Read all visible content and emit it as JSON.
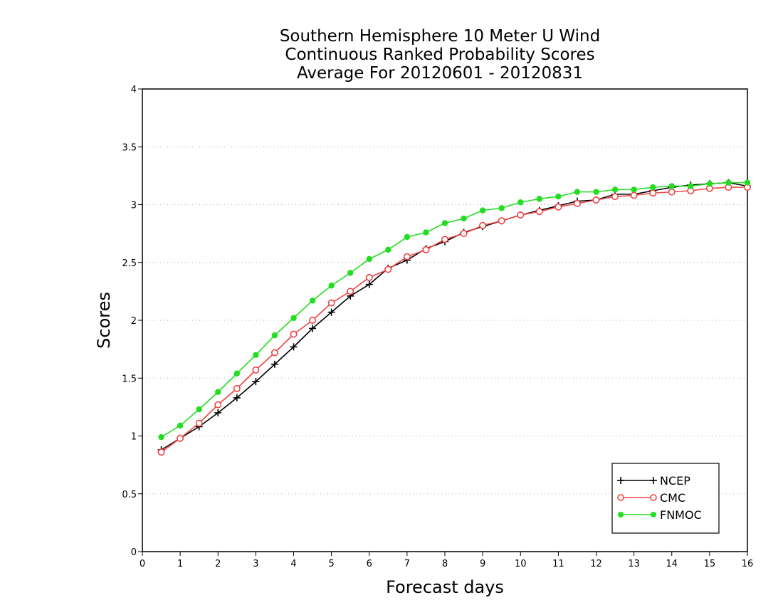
{
  "chart_data": {
    "type": "line",
    "title": [
      "Southern Hemisphere 10 Meter U Wind",
      "Continuous Ranked Probability Scores",
      "Average For 20120601 - 20120831"
    ],
    "xlabel": "Forecast days",
    "ylabel": "Scores",
    "xlim": [
      0,
      16
    ],
    "ylim": [
      0,
      4
    ],
    "x_ticks": [
      "0",
      "1",
      "2",
      "3",
      "4",
      "5",
      "6",
      "7",
      "8",
      "9",
      "10",
      "11",
      "12",
      "13",
      "14",
      "15",
      "16"
    ],
    "y_ticks": [
      "0",
      "0.5",
      "1",
      "1.5",
      "2",
      "2.5",
      "3",
      "3.5",
      "4"
    ],
    "grid": "horizontal dotted",
    "legend_position": "bottom-right",
    "x": [
      0.5,
      1,
      1.5,
      2,
      2.5,
      3,
      3.5,
      4,
      4.5,
      5,
      5.5,
      6,
      6.5,
      7,
      7.5,
      8,
      8.5,
      9,
      9.5,
      10,
      10.5,
      11,
      11.5,
      12,
      12.5,
      13,
      13.5,
      14,
      14.5,
      15,
      15.5,
      16
    ],
    "series": [
      {
        "name": "NCEP",
        "color": "#000000",
        "marker": "plus",
        "values": [
          0.88,
          0.98,
          1.08,
          1.2,
          1.33,
          1.47,
          1.62,
          1.77,
          1.93,
          2.07,
          2.21,
          2.31,
          2.45,
          2.52,
          2.62,
          2.68,
          2.76,
          2.81,
          2.86,
          2.91,
          2.95,
          2.99,
          3.03,
          3.04,
          3.09,
          3.09,
          3.12,
          3.15,
          3.17,
          3.18,
          3.19,
          3.16
        ]
      },
      {
        "name": "CMC",
        "color": "#ee4444",
        "marker": "open-circle",
        "values": [
          0.86,
          0.98,
          1.11,
          1.27,
          1.41,
          1.57,
          1.72,
          1.88,
          2.0,
          2.15,
          2.25,
          2.37,
          2.44,
          2.55,
          2.61,
          2.7,
          2.75,
          2.82,
          2.86,
          2.91,
          2.94,
          2.98,
          3.01,
          3.04,
          3.07,
          3.08,
          3.1,
          3.11,
          3.12,
          3.14,
          3.15,
          3.15
        ]
      },
      {
        "name": "FNMOC",
        "color": "#22dd22",
        "marker": "filled-circle",
        "values": [
          0.99,
          1.09,
          1.23,
          1.38,
          1.54,
          1.7,
          1.87,
          2.02,
          2.17,
          2.3,
          2.41,
          2.53,
          2.61,
          2.72,
          2.76,
          2.84,
          2.88,
          2.95,
          2.97,
          3.02,
          3.05,
          3.07,
          3.11,
          3.11,
          3.13,
          3.13,
          3.15,
          3.16,
          3.16,
          3.18,
          3.19,
          3.19
        ]
      }
    ]
  }
}
